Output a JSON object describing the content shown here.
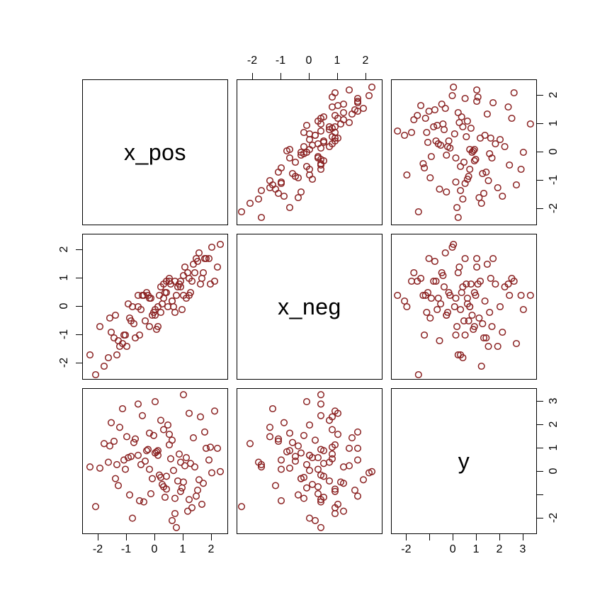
{
  "figure": {
    "background": "#ffffff"
  },
  "chart_data": {
    "type": "scatter",
    "subtype": "pairs-scatterplot-matrix",
    "title": "",
    "variables": [
      "x_pos",
      "x_neg",
      "y"
    ],
    "point_style": {
      "shape": "open-circle",
      "color": "#8B2323"
    },
    "axis_ranges": {
      "x_pos": [
        -2.55,
        2.55
      ],
      "x_neg": [
        -2.55,
        2.55
      ],
      "y": [
        -2.65,
        3.55
      ]
    },
    "axes": [
      {
        "side": "top",
        "col": 1,
        "var": "x_neg",
        "ticks": [
          -2,
          -1,
          0,
          1,
          2
        ],
        "labels": [
          "-2",
          "-1",
          "0",
          "1",
          "2"
        ]
      },
      {
        "side": "right",
        "row": 0,
        "var": "x_pos",
        "ticks": [
          2,
          1,
          0,
          -1,
          -2
        ],
        "labels": [
          "2",
          "1",
          "0",
          "-1",
          "-2"
        ]
      },
      {
        "side": "left",
        "row": 1,
        "var": "x_neg",
        "ticks": [
          2,
          1,
          0,
          -1,
          -2
        ],
        "labels": [
          "2",
          "1",
          "0",
          "-1",
          "-2"
        ]
      },
      {
        "side": "bottom",
        "col": 0,
        "var": "x_pos",
        "ticks": [
          -2,
          -1,
          0,
          1,
          2
        ],
        "labels": [
          "-2",
          "-1",
          "0",
          "1",
          "2"
        ]
      },
      {
        "side": "right",
        "row": 2,
        "var": "y",
        "ticks": [
          3,
          2,
          1,
          0,
          -1,
          -2
        ],
        "labels": [
          "3",
          "2",
          "1",
          "0",
          "",
          "-2"
        ]
      },
      {
        "side": "bottom",
        "col": 2,
        "var": "y",
        "ticks": [
          -2,
          -1,
          0,
          1,
          2,
          3
        ],
        "labels": [
          "-2",
          "",
          "0",
          "1",
          "2",
          "3"
        ]
      }
    ],
    "points": {
      "x_pos": [
        -0.5,
        1.2,
        0.3,
        -1.1,
        0.8,
        2.1,
        -0.2,
        0.6,
        -1.6,
        0.1,
        1.5,
        -0.7,
        0.4,
        1.0,
        -0.3,
        -2.1,
        0.9,
        1.8,
        -1.3,
        0.2,
        -0.9,
        1.1,
        0.5,
        -0.1,
        1.4,
        -1.8,
        0.7,
        0.0,
        -0.6,
        1.7,
        2.3,
        -1.0,
        0.35,
        1.25,
        -0.45,
        0.95,
        -1.45,
        0.55,
        1.65,
        -0.25,
        0.15,
        -1.25,
        1.05,
        0.75,
        -0.85,
        1.95,
        -0.15,
        0.45,
        -1.95,
        0.25,
        1.35,
        -0.55,
        0.85,
        -1.15,
        1.55,
        0.05,
        -0.75,
        1.15,
        -0.35,
        2.0,
        -1.55,
        0.65,
        1.45,
        -0.05,
        0.3,
        -1.35,
        1.75,
        0.2,
        -0.95,
        1.3,
        0.5,
        -1.65,
        0.9,
        1.6,
        -0.4,
        0.1,
        -2.3,
        1.0,
        0.6,
        -0.8,
        1.9,
        -0.2,
        0.4,
        -1.05,
        1.2,
        0.7,
        -0.6,
        2.2,
        -1.4,
        0.0
      ],
      "x_neg": [
        -0.1,
        0.4,
        0.8,
        -1.0,
        0.7,
        0.9,
        0.3,
        0.2,
        -0.4,
        0.0,
        1.6,
        -1.1,
        0.5,
        0.4,
        0.5,
        -2.4,
        0.7,
        1.7,
        -1.2,
        0.7,
        -0.4,
        0.3,
        1.0,
        -0.3,
        1.2,
        -2.1,
        0.9,
        -0.3,
        0.4,
        1.2,
        2.2,
        -1.4,
        0.5,
        0.5,
        0.4,
        -0.1,
        -1.1,
        0.8,
        1.0,
        0.4,
        0.4,
        -1.4,
        1.4,
        0.4,
        -0.5,
        0.8,
        0.3,
        0.0,
        -0.7,
        0.1,
        1.5,
        -1.0,
        0.8,
        -1.3,
        1.9,
        -0.8,
        -0.6,
        1.2,
        -0.5,
        2.1,
        -0.9,
        0.0,
        1.7,
        -0.2,
        0.3,
        -1.7,
        1.7,
        -0.2,
        0.1,
        0.9,
        0.9,
        -1.8,
        0.9,
        0.8,
        0.4,
        -0.7,
        -1.7,
        1.1,
        0.2,
        0.0,
        1.7,
        -0.7,
        0.9,
        -1.0,
        1.0,
        -0.2,
        0.0,
        1.4,
        -0.3,
        -0.1
      ],
      "y": [
        0.3,
        -1.2,
        1.8,
        0.5,
        -0.4,
        2.6,
        0.1,
        -2.1,
        1.1,
        0.7,
        -0.8,
        1.4,
        -0.2,
        3.3,
        0.9,
        -1.5,
        0.4,
        1.0,
        -0.6,
        2.2,
        -1.0,
        0.6,
        1.6,
        -0.3,
        0.2,
        1.2,
        -1.8,
        0.8,
        2.9,
        -0.5,
        0.0,
        1.5,
        -1.1,
        0.35,
        2.4,
        -0.7,
        1.3,
        0.55,
        -1.4,
        0.95,
        -0.15,
        1.9,
        0.25,
        -2.4,
        0.65,
        1.05,
        -0.95,
        2.0,
        0.15,
        -0.55,
        1.45,
        -1.25,
        0.75,
        2.7,
        -0.35,
        0.85,
        1.25,
        -1.7,
        0.45,
        -0.05,
        2.1,
        0.05,
        -1.05,
        1.55,
        -0.65,
        0.3,
        1.7,
        -0.25,
        0.6,
        -1.55,
        1.15,
        0.4,
        -0.85,
        2.35,
        -1.3,
        0.9,
        0.2,
        -0.45,
        1.35,
        -2.0,
        0.5,
        1.65,
        -0.75,
        0.1,
        2.5,
        -1.15,
        0.7,
        1.0,
        -0.3,
        3.0
      ]
    }
  }
}
